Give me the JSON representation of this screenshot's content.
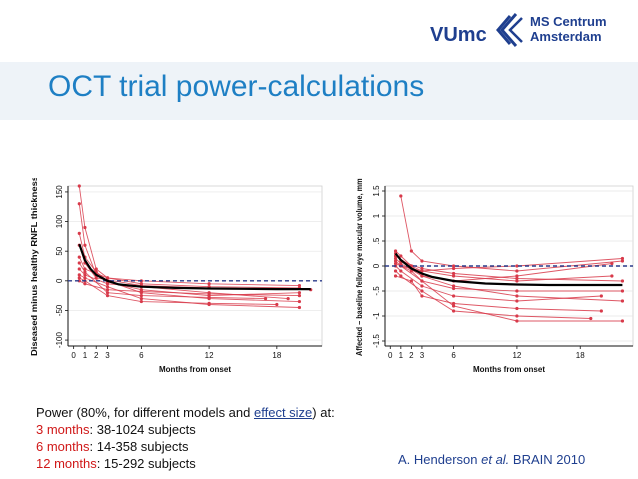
{
  "logo": {
    "brand": "VUmc",
    "org_line1": "MS Centrum",
    "org_line2": "Amsterdam",
    "accent": "#1f3f8f"
  },
  "title": "OCT trial power-calculations",
  "chart_data": [
    {
      "type": "line",
      "ylabel": "Diseased minus healthy RNFL thickness",
      "xlabel": "Months from onset",
      "xticks": [
        "0",
        "1",
        "2",
        "3",
        "6",
        "12",
        "18"
      ],
      "xtick_values": [
        0,
        1,
        2,
        3,
        6,
        12,
        18
      ],
      "yticks": [
        "-100",
        "-50",
        "0",
        "50",
        "100",
        "150"
      ],
      "ytick_values": [
        -100,
        -50,
        0,
        50,
        100,
        150
      ],
      "xlim": [
        -0.5,
        22
      ],
      "ylim": [
        -110,
        160
      ],
      "grid": true,
      "reference_line": 0,
      "fitted_curve": {
        "x": [
          0.5,
          1,
          1.5,
          2,
          3,
          4,
          6,
          9,
          12,
          15,
          18,
          21
        ],
        "y": [
          62,
          35,
          20,
          10,
          0,
          -6,
          -10,
          -12,
          -13,
          -13.5,
          -14,
          -14
        ]
      },
      "series": [
        {
          "values": [
            [
              0.5,
              160
            ],
            [
              1,
              90
            ],
            [
              2,
              20
            ],
            [
              3,
              5
            ],
            [
              6,
              -5
            ],
            [
              12,
              -10
            ],
            [
              20,
              -12
            ]
          ]
        },
        {
          "values": [
            [
              0.5,
              130
            ],
            [
              1,
              60
            ],
            [
              2,
              10
            ],
            [
              3,
              -2
            ],
            [
              6,
              -15
            ],
            [
              12,
              -25
            ],
            [
              20,
              -20
            ]
          ]
        },
        {
          "values": [
            [
              0.5,
              80
            ],
            [
              1,
              40
            ],
            [
              2,
              15
            ],
            [
              3,
              0
            ],
            [
              6,
              -20
            ],
            [
              12,
              -30
            ],
            [
              20,
              -35
            ]
          ]
        },
        {
          "values": [
            [
              0.5,
              40
            ],
            [
              1,
              20
            ],
            [
              3,
              5
            ],
            [
              6,
              0
            ],
            [
              12,
              -5
            ],
            [
              20,
              -8
            ]
          ]
        },
        {
          "values": [
            [
              0.5,
              10
            ],
            [
              1,
              5
            ],
            [
              3,
              -10
            ],
            [
              6,
              -30
            ],
            [
              12,
              -40
            ],
            [
              20,
              -45
            ]
          ]
        },
        {
          "values": [
            [
              0.5,
              20
            ],
            [
              1,
              10
            ],
            [
              3,
              -5
            ],
            [
              6,
              -10
            ],
            [
              12,
              -20
            ],
            [
              19,
              -30
            ]
          ]
        },
        {
          "values": [
            [
              0.5,
              5
            ],
            [
              1,
              0
            ],
            [
              3,
              -25
            ],
            [
              6,
              -35
            ],
            [
              12,
              -38
            ],
            [
              18,
              -40
            ]
          ]
        },
        {
          "values": [
            [
              0.5,
              60
            ],
            [
              1,
              30
            ],
            [
              2,
              5
            ],
            [
              6,
              -8
            ],
            [
              12,
              -12
            ],
            [
              21,
              -15
            ]
          ]
        },
        {
          "values": [
            [
              0.5,
              0
            ],
            [
              1,
              -5
            ],
            [
              3,
              -15
            ],
            [
              6,
              -18
            ],
            [
              12,
              -22
            ],
            [
              20,
              -25
            ]
          ]
        },
        {
          "values": [
            [
              0.5,
              30
            ],
            [
              1,
              15
            ],
            [
              3,
              -20
            ],
            [
              6,
              -25
            ],
            [
              12,
              -28
            ],
            [
              17,
              -30
            ]
          ]
        }
      ]
    },
    {
      "type": "line",
      "ylabel": "Affected – baseline fellow eye macular volume, mm³",
      "xlabel": "Months from onset",
      "xticks": [
        "0",
        "1",
        "2",
        "3",
        "6",
        "12",
        "18"
      ],
      "xtick_values": [
        0,
        1,
        2,
        3,
        6,
        12,
        18
      ],
      "yticks": [
        "-1.5",
        "-1",
        "-.5",
        "0",
        ".5",
        "1",
        "1.5"
      ],
      "ytick_values": [
        -1.5,
        -1,
        -0.5,
        0,
        0.5,
        1,
        1.5
      ],
      "xlim": [
        -0.5,
        23
      ],
      "ylim": [
        -1.6,
        1.6
      ],
      "grid": true,
      "reference_line": 0,
      "fitted_curve": {
        "x": [
          0.5,
          1,
          2,
          3,
          4,
          6,
          9,
          12,
          15,
          18,
          22
        ],
        "y": [
          0.25,
          0.12,
          -0.05,
          -0.15,
          -0.22,
          -0.3,
          -0.35,
          -0.37,
          -0.38,
          -0.38,
          -0.38
        ]
      },
      "series": [
        {
          "values": [
            [
              1,
              1.4
            ],
            [
              2,
              0.3
            ],
            [
              3,
              0.1
            ],
            [
              6,
              0
            ],
            [
              12,
              -0.1
            ],
            [
              22,
              0.1
            ]
          ]
        },
        {
          "values": [
            [
              0.5,
              0.3
            ],
            [
              1,
              0.2
            ],
            [
              3,
              -0.2
            ],
            [
              6,
              -0.4
            ],
            [
              12,
              -0.6
            ],
            [
              22,
              -0.7
            ]
          ]
        },
        {
          "values": [
            [
              0.5,
              0.1
            ],
            [
              1,
              0
            ],
            [
              3,
              -0.3
            ],
            [
              6,
              -0.8
            ],
            [
              12,
              -1.1
            ],
            [
              22,
              -1.1
            ]
          ]
        },
        {
          "values": [
            [
              0.5,
              0.2
            ],
            [
              2,
              0
            ],
            [
              3,
              -0.1
            ],
            [
              6,
              -0.2
            ],
            [
              12,
              -0.3
            ],
            [
              21,
              -0.2
            ]
          ]
        },
        {
          "values": [
            [
              0.5,
              0
            ],
            [
              1,
              -0.1
            ],
            [
              3,
              -0.4
            ],
            [
              6,
              -0.6
            ],
            [
              12,
              -0.7
            ],
            [
              20,
              -0.6
            ]
          ]
        },
        {
          "values": [
            [
              0.5,
              0.25
            ],
            [
              1,
              0.1
            ],
            [
              3,
              -0.05
            ],
            [
              6,
              -0.15
            ],
            [
              12,
              -0.25
            ],
            [
              22,
              -0.3
            ]
          ]
        },
        {
          "values": [
            [
              0.5,
              -0.1
            ],
            [
              1,
              -0.2
            ],
            [
              3,
              -0.5
            ],
            [
              6,
              -0.9
            ],
            [
              12,
              -1.0
            ],
            [
              19,
              -1.05
            ]
          ]
        },
        {
          "values": [
            [
              0.5,
              0.05
            ],
            [
              2,
              -0.1
            ],
            [
              3,
              -0.3
            ],
            [
              6,
              -0.45
            ],
            [
              12,
              -0.5
            ],
            [
              22,
              -0.5
            ]
          ]
        },
        {
          "values": [
            [
              0.5,
              0.15
            ],
            [
              1,
              0.05
            ],
            [
              3,
              -0.2
            ],
            [
              6,
              -0.3
            ],
            [
              12,
              -0.2
            ],
            [
              21,
              0.05
            ]
          ]
        },
        {
          "values": [
            [
              1,
              0
            ],
            [
              3,
              -0.1
            ],
            [
              6,
              -0.05
            ],
            [
              12,
              0
            ],
            [
              22,
              0.15
            ]
          ]
        },
        {
          "values": [
            [
              0.5,
              -0.2
            ],
            [
              2,
              -0.3
            ],
            [
              3,
              -0.6
            ],
            [
              6,
              -0.75
            ],
            [
              12,
              -0.85
            ],
            [
              20,
              -0.9
            ]
          ]
        }
      ]
    }
  ],
  "power": {
    "intro_a": "Power (80%, for different models and ",
    "intro_link": "effect size",
    "intro_b": ") at:",
    "rows": [
      {
        "label": "3 months",
        "value": ": 38-1024 subjects"
      },
      {
        "label": "6 months",
        "value": ": 14-358 subjects"
      },
      {
        "label": "12 months",
        "value": ": 15-292 subjects"
      }
    ]
  },
  "citation": {
    "author": "A. Henderson ",
    "etal": "et al.",
    "journal": " BRAIN 2010"
  },
  "colors": {
    "title": "#1e7fc4",
    "data_red": "#d83a4a",
    "fit": "#000000",
    "reference": "#2a3a8a",
    "emphasis_red": "#d01818"
  }
}
